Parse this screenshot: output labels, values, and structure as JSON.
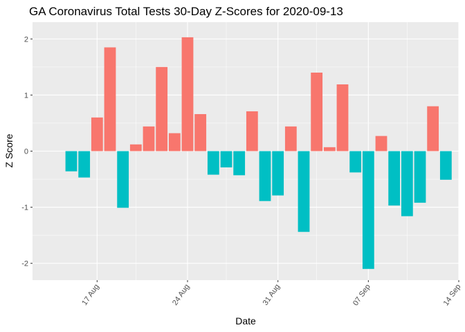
{
  "chart_data": {
    "type": "bar",
    "title": "GA Coronavirus Total Tests 30-Day Z-Scores for 2020-09-13",
    "xlabel": "Date",
    "ylabel": "Z Score",
    "ylim": [
      -2.3,
      2.3
    ],
    "yticks": [
      -2,
      -1,
      0,
      1,
      2
    ],
    "ytick_labels": [
      "-2",
      "-1",
      "0",
      "1",
      "2"
    ],
    "xlim": [
      "2020-08-12",
      "2020-09-14"
    ],
    "xticks": [
      "2020-08-17",
      "2020-08-24",
      "2020-08-31",
      "2020-09-07",
      "2020-09-14"
    ],
    "xtick_labels": [
      "17 Aug",
      "24 Aug",
      "31 Aug",
      "07 Sep",
      "14 Sep"
    ],
    "grid": true,
    "legend": "none",
    "colors": {
      "positive": "#F8766D",
      "negative": "#00BFC4",
      "panel": "#EBEBEB",
      "grid": "#FFFFFF"
    },
    "x": [
      "2020-08-15",
      "2020-08-16",
      "2020-08-17",
      "2020-08-18",
      "2020-08-19",
      "2020-08-20",
      "2020-08-21",
      "2020-08-22",
      "2020-08-23",
      "2020-08-24",
      "2020-08-25",
      "2020-08-26",
      "2020-08-27",
      "2020-08-28",
      "2020-08-29",
      "2020-08-30",
      "2020-08-31",
      "2020-09-01",
      "2020-09-02",
      "2020-09-03",
      "2020-09-04",
      "2020-09-05",
      "2020-09-06",
      "2020-09-07",
      "2020-09-08",
      "2020-09-09",
      "2020-09-10",
      "2020-09-11",
      "2020-09-12",
      "2020-09-13"
    ],
    "values": [
      -0.36,
      -0.47,
      0.6,
      1.85,
      -1.01,
      0.12,
      0.44,
      1.5,
      0.32,
      2.03,
      0.66,
      -0.42,
      -0.29,
      -0.43,
      0.71,
      -0.89,
      -0.79,
      0.44,
      -1.44,
      1.4,
      0.07,
      1.19,
      -0.38,
      -2.1,
      0.27,
      -0.97,
      -1.16,
      -0.92,
      0.8,
      -0.51
    ]
  }
}
